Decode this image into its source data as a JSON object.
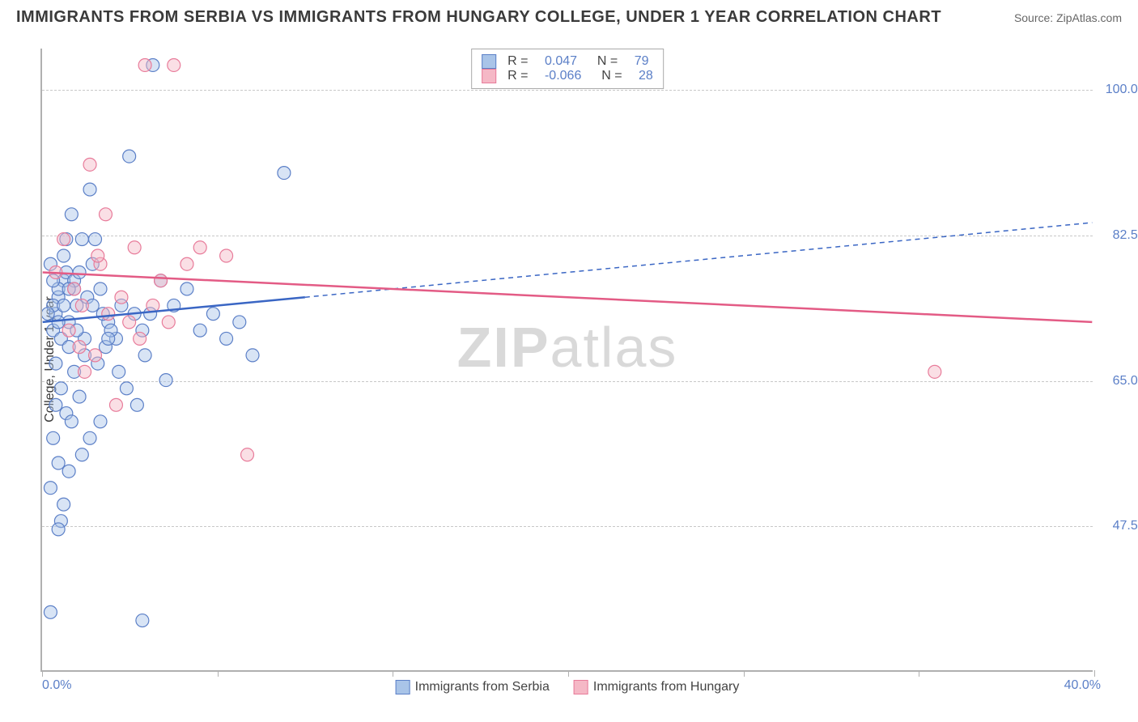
{
  "header": {
    "title": "IMMIGRANTS FROM SERBIA VS IMMIGRANTS FROM HUNGARY COLLEGE, UNDER 1 YEAR CORRELATION CHART",
    "source": "Source: ZipAtlas.com"
  },
  "chart": {
    "type": "scatter",
    "ylabel": "College, Under 1 year",
    "xlim": [
      0,
      40
    ],
    "ylim": [
      30,
      105
    ],
    "ytick_positions": [
      47.5,
      65.0,
      82.5,
      100.0
    ],
    "ytick_labels": [
      "47.5%",
      "65.0%",
      "82.5%",
      "100.0%"
    ],
    "xtick_positions": [
      0,
      6.67,
      13.33,
      20,
      26.67,
      33.33,
      40
    ],
    "xaxis_min_label": "0.0%",
    "xaxis_max_label": "40.0%",
    "background_color": "#ffffff",
    "grid_color": "#c8c8c8",
    "axis_color": "#b0b0b0",
    "marker_radius": 8,
    "marker_opacity": 0.45,
    "series": [
      {
        "name": "Immigrants from Serbia",
        "color_fill": "#a9c4e8",
        "color_stroke": "#5b7fc7",
        "R": "0.047",
        "N": "79",
        "trend": {
          "x1": 0,
          "y1": 72,
          "x2": 40,
          "y2": 84,
          "solid_until_x": 10,
          "color": "#3a66c4",
          "width": 2.5
        },
        "points": [
          [
            0.3,
            79
          ],
          [
            0.4,
            71
          ],
          [
            0.5,
            73
          ],
          [
            0.6,
            75
          ],
          [
            0.7,
            70
          ],
          [
            0.5,
            67
          ],
          [
            0.8,
            77
          ],
          [
            0.9,
            78
          ],
          [
            0.4,
            74
          ],
          [
            0.6,
            76
          ],
          [
            0.8,
            80
          ],
          [
            1.0,
            72
          ],
          [
            1.1,
            85
          ],
          [
            1.2,
            76
          ],
          [
            1.0,
            69
          ],
          [
            1.3,
            74
          ],
          [
            1.5,
            82
          ],
          [
            1.8,
            88
          ],
          [
            1.2,
            66
          ],
          [
            1.6,
            70
          ],
          [
            0.5,
            62
          ],
          [
            0.7,
            64
          ],
          [
            0.9,
            61
          ],
          [
            1.1,
            60
          ],
          [
            1.4,
            63
          ],
          [
            0.4,
            58
          ],
          [
            0.6,
            55
          ],
          [
            2.0,
            82
          ],
          [
            2.2,
            76
          ],
          [
            2.5,
            72
          ],
          [
            2.8,
            70
          ],
          [
            3.0,
            74
          ],
          [
            3.3,
            92
          ],
          [
            3.5,
            73
          ],
          [
            3.8,
            71
          ],
          [
            4.1,
            73
          ],
          [
            4.5,
            77
          ],
          [
            0.3,
            52
          ],
          [
            0.7,
            48
          ],
          [
            1.0,
            54
          ],
          [
            1.5,
            56
          ],
          [
            1.8,
            58
          ],
          [
            0.8,
            50
          ],
          [
            2.2,
            60
          ],
          [
            3.9,
            68
          ],
          [
            4.2,
            103
          ],
          [
            4.7,
            65
          ],
          [
            9.2,
            90
          ],
          [
            8.0,
            68
          ],
          [
            5.0,
            74
          ],
          [
            5.5,
            76
          ],
          [
            6.0,
            71
          ],
          [
            6.5,
            73
          ],
          [
            7.0,
            70
          ],
          [
            7.5,
            72
          ],
          [
            0.3,
            37
          ],
          [
            3.8,
            36
          ],
          [
            0.6,
            47
          ],
          [
            1.2,
            77
          ],
          [
            1.9,
            79
          ],
          [
            2.3,
            73
          ],
          [
            2.6,
            71
          ],
          [
            0.9,
            82
          ],
          [
            1.4,
            78
          ],
          [
            1.7,
            75
          ],
          [
            2.1,
            67
          ],
          [
            2.4,
            69
          ],
          [
            2.9,
            66
          ],
          [
            3.2,
            64
          ],
          [
            3.6,
            62
          ],
          [
            0.2,
            73
          ],
          [
            0.4,
            77
          ],
          [
            0.6,
            72
          ],
          [
            0.8,
            74
          ],
          [
            1.0,
            76
          ],
          [
            1.3,
            71
          ],
          [
            1.6,
            68
          ],
          [
            1.9,
            74
          ],
          [
            2.5,
            70
          ]
        ]
      },
      {
        "name": "Immigrants from Hungary",
        "color_fill": "#f5b8c6",
        "color_stroke": "#e87b9a",
        "R": "-0.066",
        "N": "28",
        "trend": {
          "x1": 0,
          "y1": 78,
          "x2": 40,
          "y2": 72,
          "solid_until_x": 40,
          "color": "#e35b85",
          "width": 2.5
        },
        "points": [
          [
            0.5,
            78
          ],
          [
            0.8,
            82
          ],
          [
            1.2,
            76
          ],
          [
            1.5,
            74
          ],
          [
            1.8,
            91
          ],
          [
            2.2,
            79
          ],
          [
            2.5,
            73
          ],
          [
            3.0,
            75
          ],
          [
            3.5,
            81
          ],
          [
            3.9,
            103
          ],
          [
            4.5,
            77
          ],
          [
            5.0,
            103
          ],
          [
            3.3,
            72
          ],
          [
            2.4,
            85
          ],
          [
            1.0,
            71
          ],
          [
            1.4,
            69
          ],
          [
            2.0,
            68
          ],
          [
            2.8,
            62
          ],
          [
            3.7,
            70
          ],
          [
            4.2,
            74
          ],
          [
            4.8,
            72
          ],
          [
            5.5,
            79
          ],
          [
            6.0,
            81
          ],
          [
            7.0,
            80
          ],
          [
            7.8,
            56
          ],
          [
            34.0,
            66
          ],
          [
            1.6,
            66
          ],
          [
            2.1,
            80
          ]
        ]
      }
    ],
    "legend_bottom": [
      {
        "label": "Immigrants from Serbia",
        "fill": "#a9c4e8",
        "stroke": "#5b7fc7"
      },
      {
        "label": "Immigrants from Hungary",
        "fill": "#f5b8c6",
        "stroke": "#e87b9a"
      }
    ],
    "watermark": {
      "bold": "ZIP",
      "rest": "atlas"
    }
  }
}
